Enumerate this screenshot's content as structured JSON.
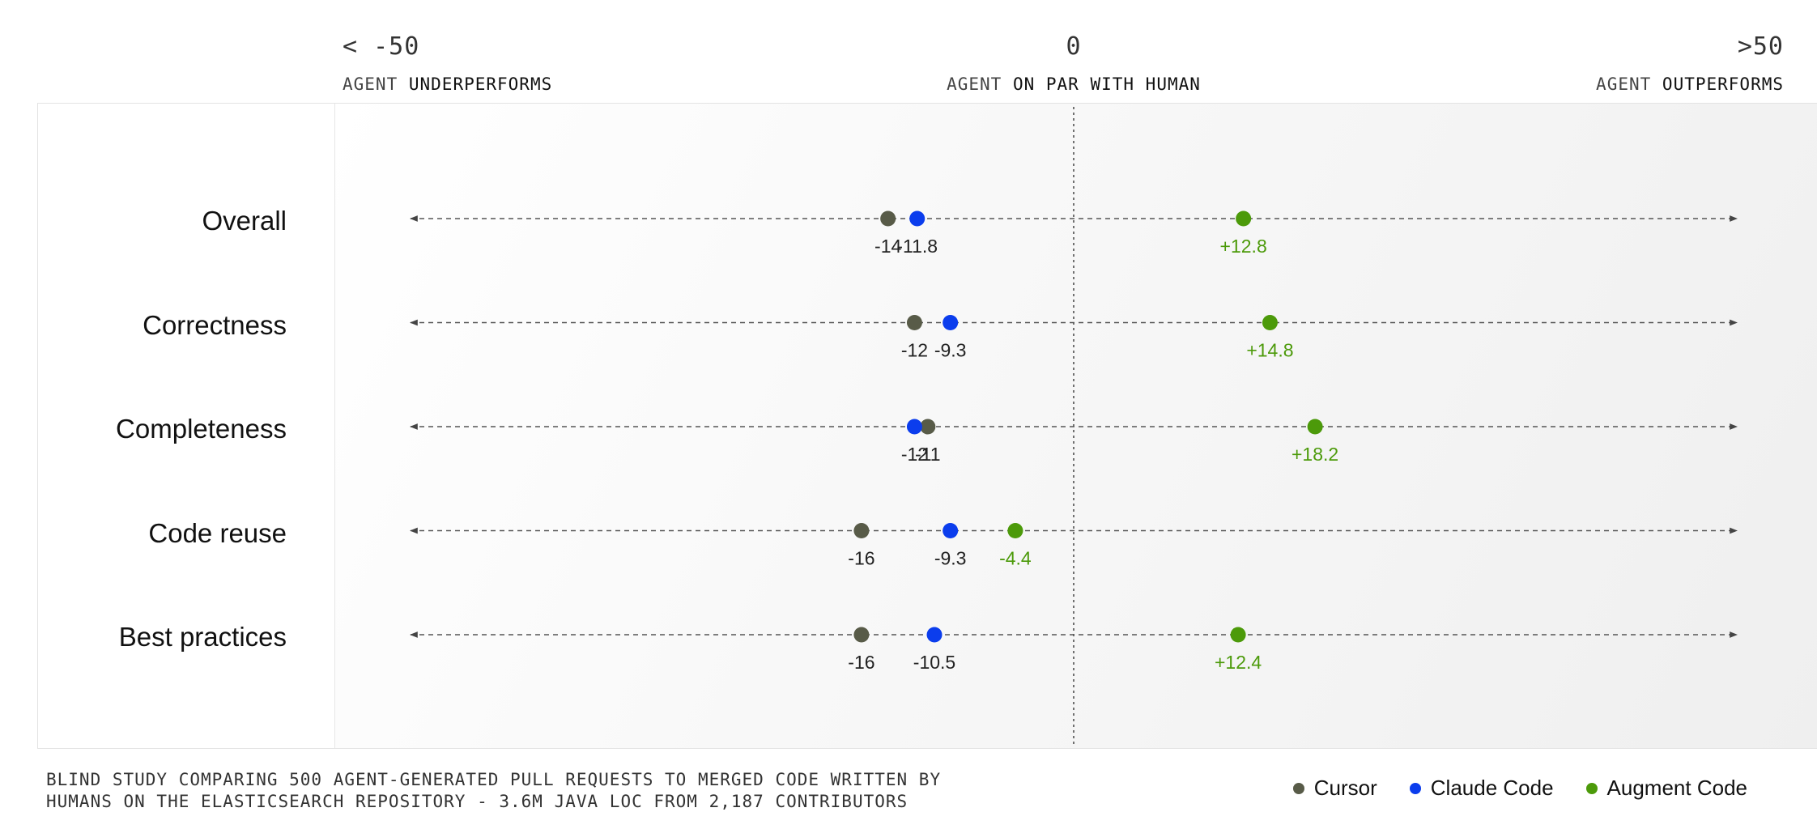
{
  "header": {
    "left_value": "< -50",
    "center_value": "0",
    "right_value": ">50",
    "left_prefix": "AGENT",
    "left_emph": "UNDERPERFORMS",
    "center_prefix": "AGENT",
    "center_emph": "ON PAR WITH HUMAN",
    "right_prefix": "AGENT",
    "right_emph": "OUTPERFORMS"
  },
  "chart_data": {
    "type": "scatter",
    "xlim": [
      -50,
      50
    ],
    "reference_line": 0,
    "grid": false,
    "legend_position": "bottom-right",
    "categories": [
      "Overall",
      "Correctness",
      "Completeness",
      "Code reuse",
      "Best practices"
    ],
    "series": [
      {
        "name": "Cursor",
        "color": "#585b48",
        "values": [
          -14,
          -12,
          -11,
          -16,
          -16
        ],
        "labels": [
          "-14",
          "-12",
          "-11",
          "-16",
          "-16"
        ]
      },
      {
        "name": "Claude Code",
        "color": "#0b3ded",
        "values": [
          -11.8,
          -9.3,
          -12,
          -9.3,
          -10.5
        ],
        "labels": [
          "-11.8",
          "-9.3",
          "-12",
          "-9.3",
          "-10.5"
        ]
      },
      {
        "name": "Augment Code",
        "color": "#4c9a0a",
        "values": [
          12.8,
          14.8,
          18.2,
          -4.4,
          12.4
        ],
        "labels": [
          "+12.8",
          "+14.8",
          "+18.2",
          "-4.4",
          "+12.4"
        ]
      }
    ]
  },
  "footnote": {
    "line1": "BLIND STUDY COMPARING 500 AGENT-GENERATED PULL REQUESTS TO MERGED CODE WRITTEN BY",
    "line2": "HUMANS ON THE ELASTICSEARCH REPOSITORY - 3.6M JAVA LOC FROM 2,187 CONTRIBUTORS"
  },
  "legend": {
    "items": [
      {
        "label": "Cursor",
        "color": "#585b48"
      },
      {
        "label": "Claude Code",
        "color": "#0b3ded"
      },
      {
        "label": "Augment Code",
        "color": "#4c9a0a"
      }
    ]
  }
}
